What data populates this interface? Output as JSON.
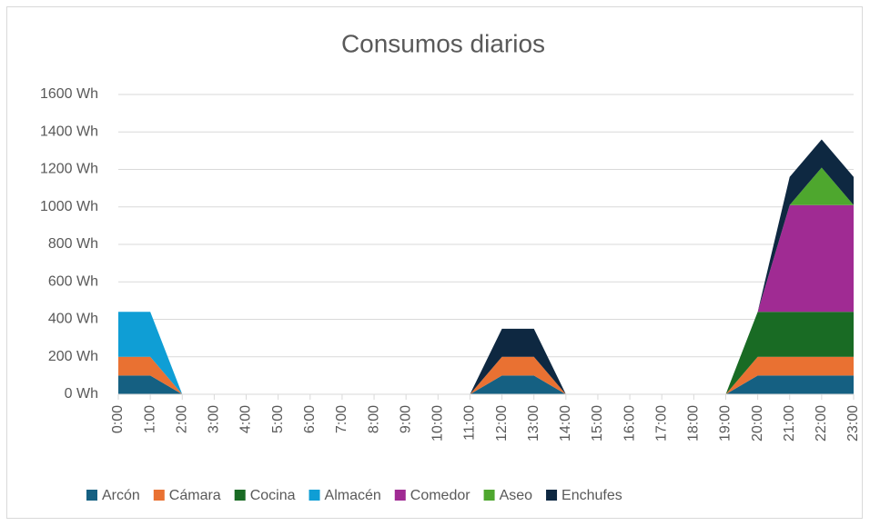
{
  "chart_data": {
    "type": "stacked-area",
    "title": "Consumos diarios",
    "categories": [
      "0:00",
      "1:00",
      "2:00",
      "3:00",
      "4:00",
      "5:00",
      "6:00",
      "7:00",
      "8:00",
      "9:00",
      "10:00",
      "11:00",
      "12:00",
      "13:00",
      "14:00",
      "15:00",
      "16:00",
      "17:00",
      "18:00",
      "19:00",
      "20:00",
      "21:00",
      "22:00",
      "23:00"
    ],
    "series": [
      {
        "name": "Arcón",
        "color": "#156082",
        "values": [
          100,
          100,
          0,
          0,
          0,
          0,
          0,
          0,
          0,
          0,
          0,
          0,
          100,
          100,
          0,
          0,
          0,
          0,
          0,
          0,
          100,
          100,
          100,
          100
        ]
      },
      {
        "name": "Cámara",
        "color": "#e97132",
        "values": [
          100,
          100,
          0,
          0,
          0,
          0,
          0,
          0,
          0,
          0,
          0,
          0,
          100,
          100,
          0,
          0,
          0,
          0,
          0,
          0,
          100,
          100,
          100,
          100
        ]
      },
      {
        "name": "Cocina",
        "color": "#196b24",
        "values": [
          0,
          0,
          0,
          0,
          0,
          0,
          0,
          0,
          0,
          0,
          0,
          0,
          0,
          0,
          0,
          0,
          0,
          0,
          0,
          0,
          240,
          240,
          240,
          240
        ]
      },
      {
        "name": "Almacén",
        "color": "#0f9ed5",
        "values": [
          240,
          240,
          0,
          0,
          0,
          0,
          0,
          0,
          0,
          0,
          0,
          0,
          0,
          0,
          0,
          0,
          0,
          0,
          0,
          0,
          0,
          0,
          0,
          0
        ]
      },
      {
        "name": "Comedor",
        "color": "#a02b93",
        "values": [
          0,
          0,
          0,
          0,
          0,
          0,
          0,
          0,
          0,
          0,
          0,
          0,
          0,
          0,
          0,
          0,
          0,
          0,
          0,
          0,
          0,
          570,
          570,
          570
        ]
      },
      {
        "name": "Aseo",
        "color": "#4ea72e",
        "values": [
          0,
          0,
          0,
          0,
          0,
          0,
          0,
          0,
          0,
          0,
          0,
          0,
          0,
          0,
          0,
          0,
          0,
          0,
          0,
          0,
          0,
          0,
          200,
          0
        ]
      },
      {
        "name": "Enchufes",
        "color": "#0e2841",
        "values": [
          0,
          0,
          0,
          0,
          0,
          0,
          0,
          0,
          0,
          0,
          0,
          0,
          150,
          150,
          0,
          0,
          0,
          0,
          0,
          0,
          0,
          150,
          150,
          150
        ]
      }
    ],
    "ylim": [
      0,
      1600
    ],
    "yticks": [
      {
        "value": 0,
        "label": "0 Wh"
      },
      {
        "value": 200,
        "label": "200 Wh"
      },
      {
        "value": 400,
        "label": "400 Wh"
      },
      {
        "value": 600,
        "label": "600 Wh"
      },
      {
        "value": 800,
        "label": "800 Wh"
      },
      {
        "value": 1000,
        "label": "1000 Wh"
      },
      {
        "value": 1200,
        "label": "1200 Wh"
      },
      {
        "value": 1400,
        "label": "1400 Wh"
      },
      {
        "value": 1600,
        "label": "1600 Wh"
      }
    ],
    "grid": true,
    "legend": "bottom"
  }
}
